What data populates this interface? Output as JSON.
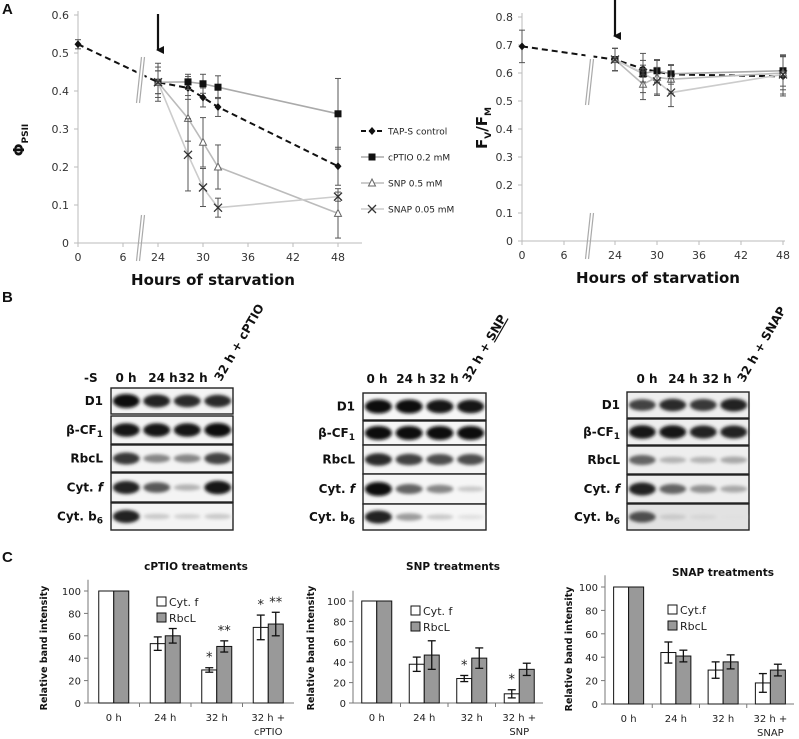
{
  "panels": {
    "a": "A",
    "b": "B",
    "c": "C"
  },
  "chart_data": [
    {
      "id": "phi-psii",
      "type": "line",
      "ylabel_main": "Φ",
      "ylabel_sub": "PSII",
      "xlabel": "Hours of starvation",
      "xticks": [
        0,
        6,
        24,
        30,
        36,
        42,
        48
      ],
      "yticks": [
        0,
        0.1,
        0.2,
        0.3,
        0.4,
        0.5,
        0.6
      ],
      "ytick_labels": [
        "0",
        "0.1",
        "0.2",
        "0.3",
        "0.4",
        "0.5",
        "0.6"
      ],
      "ylim": [
        0,
        0.6
      ],
      "axis_break": "between 6 and 24 h",
      "annotation": "arrow at 24 h",
      "legend_position": "right",
      "series": [
        {
          "name": "TAP-S control",
          "marker": "diamond",
          "color": "#111111",
          "dashed": true,
          "x": [
            0,
            24,
            28,
            30,
            32,
            48
          ],
          "y": [
            0.523,
            0.423,
            0.408,
            0.383,
            0.358,
            0.202
          ],
          "err": [
            0.012,
            0.04,
            0.03,
            0.025,
            0.025,
            0.05
          ]
        },
        {
          "name": "cPTIO 0.2 mM",
          "marker": "square",
          "color": "#aaaaaa",
          "x": [
            24,
            28,
            30,
            32,
            48
          ],
          "y": [
            0.423,
            0.424,
            0.419,
            0.41,
            0.34
          ],
          "err": [
            0.03,
            0.02,
            0.025,
            0.03,
            0.093
          ]
        },
        {
          "name": "SNP 0.5 mM",
          "marker": "triangle",
          "color": "#bbbbbb",
          "x": [
            24,
            28,
            30,
            32,
            48
          ],
          "y": [
            0.423,
            0.328,
            0.265,
            0.2,
            0.078
          ],
          "err": [
            0.03,
            0.06,
            0.065,
            0.058,
            0.065
          ]
        },
        {
          "name": "SNAP 0.05 mM",
          "marker": "x",
          "color": "#cccccc",
          "x": [
            24,
            28,
            30,
            32,
            48
          ],
          "y": [
            0.423,
            0.232,
            0.146,
            0.093,
            0.122
          ],
          "err": [
            0.05,
            0.095,
            0.05,
            0.025,
            0.012
          ]
        }
      ]
    },
    {
      "id": "fv-fm",
      "type": "line",
      "ylabel_main": "F",
      "ylabel_sub1": "V",
      "ylabel_slash": "/F",
      "ylabel_sub2": "M",
      "xlabel": "Hours of starvation",
      "xticks": [
        0,
        6,
        24,
        30,
        36,
        42,
        48
      ],
      "yticks": [
        0,
        0.1,
        0.2,
        0.3,
        0.4,
        0.5,
        0.6,
        0.7,
        0.8
      ],
      "ytick_labels": [
        "0",
        "0.1",
        "0.2",
        "0.3",
        "0.4",
        "0.5",
        "0.6",
        "0.7",
        "0.8"
      ],
      "ylim": [
        0,
        0.8
      ],
      "axis_break": "between 6 and 24 h",
      "annotation": "arrow at 24 h",
      "series": [
        {
          "name": "TAP-S control",
          "marker": "diamond",
          "color": "#111111",
          "dashed": true,
          "x": [
            0,
            24,
            28,
            30,
            32,
            48
          ],
          "y": [
            0.695,
            0.648,
            0.615,
            0.605,
            0.595,
            0.588
          ],
          "err": [
            0.058,
            0.04,
            0.03,
            0.04,
            0.035,
            0.07
          ]
        },
        {
          "name": "cPTIO 0.2 mM",
          "marker": "square",
          "color": "#aaaaaa",
          "x": [
            24,
            28,
            30,
            32,
            48
          ],
          "y": [
            0.648,
            0.598,
            0.608,
            0.597,
            0.608
          ],
          "err": [
            0.04,
            0.03,
            0.04,
            0.03,
            0.055
          ]
        },
        {
          "name": "SNP 0.5 mM",
          "marker": "triangle",
          "color": "#bbbbbb",
          "x": [
            24,
            28,
            30,
            32,
            48
          ],
          "y": [
            0.648,
            0.56,
            0.585,
            0.578,
            0.6
          ],
          "err": [
            0.04,
            0.055,
            0.06,
            0.05,
            0.06
          ]
        },
        {
          "name": "SNAP 0.05 mM",
          "marker": "x",
          "color": "#cccccc",
          "x": [
            24,
            28,
            30,
            32,
            48
          ],
          "y": [
            0.648,
            0.6,
            0.57,
            0.53,
            0.595
          ],
          "err": [
            0.04,
            0.07,
            0.05,
            0.05,
            0.07
          ]
        }
      ]
    },
    {
      "id": "cptio-bars",
      "type": "bar",
      "title": "cPTIO treatments",
      "ylabel": "Relative band intensity",
      "categories": [
        "0 h",
        "24 h",
        "32 h",
        "32 h +"
      ],
      "categories_line2": [
        "",
        "",
        "",
        "cPTIO"
      ],
      "yticks": [
        0,
        20,
        40,
        60,
        80,
        100
      ],
      "ytick_labels": [
        "0",
        "20",
        "40",
        "60",
        "80",
        "100"
      ],
      "ylim": [
        0,
        110
      ],
      "legend_position": "top-center",
      "series": [
        {
          "name": "Cyt. f",
          "color": "#ffffff",
          "values": [
            100,
            53,
            29.5,
            67.5
          ],
          "err": [
            0,
            6,
            2,
            11
          ],
          "stars": [
            "",
            "",
            "*",
            "*"
          ]
        },
        {
          "name": "RbcL",
          "color": "#999999",
          "values": [
            100,
            60,
            50.5,
            70.5
          ],
          "err": [
            0,
            6.5,
            5,
            10.5
          ],
          "stars": [
            "",
            "",
            "**",
            "**"
          ]
        }
      ]
    },
    {
      "id": "snp-bars",
      "type": "bar",
      "title": "SNP treatments",
      "ylabel": "Relative band intensity",
      "categories": [
        "0 h",
        "24 h",
        "32 h",
        "32 h +"
      ],
      "categories_line2": [
        "",
        "",
        "",
        "SNP"
      ],
      "yticks": [
        0,
        20,
        40,
        60,
        80,
        100
      ],
      "ytick_labels": [
        "0",
        "20",
        "40",
        "60",
        "80",
        "100"
      ],
      "ylim": [
        0,
        110
      ],
      "series": [
        {
          "name": "Cyt. f",
          "color": "#ffffff",
          "values": [
            100,
            38,
            24,
            9
          ],
          "err": [
            0,
            7,
            3,
            4
          ],
          "stars": [
            "",
            "",
            "*",
            "*"
          ]
        },
        {
          "name": "RbcL",
          "color": "#999999",
          "values": [
            100,
            47,
            44,
            33
          ],
          "err": [
            0,
            14,
            10,
            6
          ],
          "stars": [
            "",
            "",
            "",
            ""
          ]
        }
      ]
    },
    {
      "id": "snap-bars",
      "type": "bar",
      "title": "SNAP treatments",
      "ylabel": "Relative band intensity",
      "categories": [
        "0 h",
        "24 h",
        "32 h",
        "32 h +"
      ],
      "categories_line2": [
        "",
        "",
        "",
        "SNAP"
      ],
      "yticks": [
        0,
        20,
        40,
        60,
        80,
        100
      ],
      "ytick_labels": [
        "0",
        "20",
        "40",
        "60",
        "80",
        "100"
      ],
      "ylim": [
        0,
        110
      ],
      "series": [
        {
          "name": "Cyt.f",
          "color": "#ffffff",
          "values": [
            100,
            44,
            29,
            18
          ],
          "err": [
            0,
            9,
            7,
            8
          ],
          "stars": [
            "",
            "",
            "",
            ""
          ]
        },
        {
          "name": "RbcL",
          "color": "#999999",
          "values": [
            100,
            41,
            36,
            29
          ],
          "err": [
            0,
            5,
            6,
            5
          ],
          "stars": [
            "",
            "",
            "",
            ""
          ]
        }
      ]
    }
  ],
  "blots": [
    {
      "id": "cptio",
      "condition": "-S",
      "lanes": [
        "0 h",
        "24 h",
        "32 h"
      ],
      "rotated_lane": "32 h + cPTIO",
      "rotated_underline": "",
      "rows": [
        {
          "label": "D1",
          "intensity": [
            1.0,
            0.9,
            0.85,
            0.85
          ]
        },
        {
          "label": "β-CF",
          "sub": "1",
          "intensity": [
            0.95,
            0.95,
            0.95,
            1.0
          ]
        },
        {
          "label": "RbcL",
          "intensity": [
            0.8,
            0.45,
            0.45,
            0.75
          ]
        },
        {
          "label": "Cyt. ",
          "ital": "f",
          "intensity": [
            0.9,
            0.65,
            0.25,
            0.95
          ]
        },
        {
          "label": "Cyt. b",
          "sub": "6",
          "intensity": [
            0.9,
            0.15,
            0.12,
            0.15
          ]
        }
      ]
    },
    {
      "id": "snp",
      "condition": "",
      "lanes": [
        "0 h",
        "24 h",
        "32 h"
      ],
      "rotated_lane": "32 h + ",
      "rotated_underline": "SNP",
      "rows": [
        {
          "label": "D1",
          "intensity": [
            1.0,
            1.0,
            0.95,
            0.95
          ]
        },
        {
          "label": "β-CF",
          "sub": "1",
          "intensity": [
            1.0,
            1.0,
            1.0,
            1.0
          ]
        },
        {
          "label": "RbcL",
          "intensity": [
            0.85,
            0.75,
            0.7,
            0.7
          ]
        },
        {
          "label": "Cyt. ",
          "ital": "f",
          "intensity": [
            1.0,
            0.6,
            0.45,
            0.15
          ]
        },
        {
          "label": "Cyt. b",
          "sub": "6",
          "intensity": [
            0.9,
            0.35,
            0.15,
            0.05
          ]
        }
      ]
    },
    {
      "id": "snap",
      "condition": "",
      "lanes": [
        "0 h",
        "24 h",
        "32 h"
      ],
      "rotated_lane": "32 h + SNAP",
      "rotated_underline": "",
      "rows": [
        {
          "label": "D1",
          "intensity": [
            0.75,
            0.85,
            0.8,
            0.9
          ]
        },
        {
          "label": "β-CF",
          "sub": "1",
          "intensity": [
            0.95,
            0.95,
            0.9,
            0.9
          ]
        },
        {
          "label": "RbcL",
          "intensity": [
            0.6,
            0.25,
            0.25,
            0.3
          ]
        },
        {
          "label": "Cyt. ",
          "ital": "f",
          "intensity": [
            0.9,
            0.6,
            0.4,
            0.3
          ]
        },
        {
          "label": "Cyt. b",
          "sub": "6",
          "intensity": [
            0.7,
            0.15,
            0.1,
            0.05
          ]
        }
      ]
    }
  ]
}
